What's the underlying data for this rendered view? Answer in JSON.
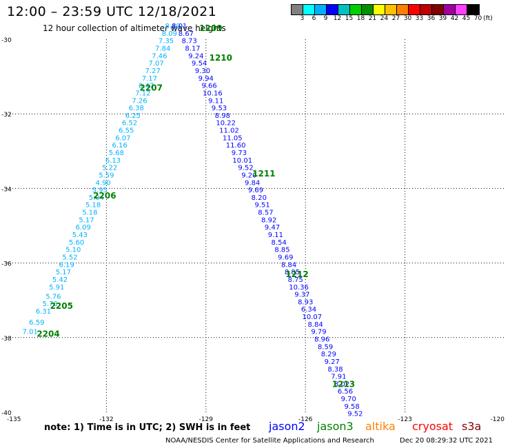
{
  "header": {
    "title": "12:00 – 23:59 UTC 12/18/2021",
    "subtitle": "12 hour collection of altimeter wave heights"
  },
  "colorbar": {
    "unit": "(ft)",
    "labels": [
      "3",
      "6",
      "9",
      "12",
      "15",
      "18",
      "21",
      "24",
      "27",
      "30",
      "33",
      "36",
      "39",
      "42",
      "45",
      "70"
    ],
    "colors": [
      "#808080",
      "#00ffff",
      "#00b0ff",
      "#0000ff",
      "#00c0c0",
      "#00d000",
      "#009000",
      "#ffff00",
      "#ffc000",
      "#ff8000",
      "#ff0000",
      "#c00000",
      "#800000",
      "#a000a0",
      "#ff40ff",
      "#000000"
    ]
  },
  "map": {
    "lon_min": -135,
    "lon_max": -120,
    "lat_min": -40,
    "lat_max": -30,
    "lon_ticks": [
      -135,
      -132,
      -129,
      -126,
      -123,
      -120
    ],
    "lat_ticks": [
      -30,
      -32,
      -34,
      -36,
      -38,
      -40
    ],
    "lon_tick_labels": [
      "-135",
      "-132",
      "-129",
      "-126",
      "-123",
      "-120"
    ],
    "lat_tick_labels": [
      "-30",
      "-32",
      "-34",
      "-36",
      "-38",
      "-40"
    ]
  },
  "tracks": [
    {
      "satellite": "jason3",
      "color": "#00b0ff",
      "points": [
        {
          "lon": -134.3,
          "lat": -37.85,
          "v": "7.01"
        },
        {
          "lon": -134.1,
          "lat": -37.6,
          "v": "6.59"
        },
        {
          "lon": -133.9,
          "lat": -37.3,
          "v": "6.31"
        },
        {
          "lon": -133.7,
          "lat": -37.1,
          "v": "5.76"
        },
        {
          "lon": -133.6,
          "lat": -36.9,
          "v": "5.76"
        },
        {
          "lon": -133.5,
          "lat": -36.65,
          "v": "5.91"
        },
        {
          "lon": -133.4,
          "lat": -36.45,
          "v": "5.42"
        },
        {
          "lon": -133.3,
          "lat": -36.25,
          "v": "5.17"
        },
        {
          "lon": -133.2,
          "lat": -36.05,
          "v": "6.19"
        },
        {
          "lon": -133.1,
          "lat": -35.85,
          "v": "5.52"
        },
        {
          "lon": -133.0,
          "lat": -35.65,
          "v": "5.10"
        },
        {
          "lon": -132.9,
          "lat": -35.45,
          "v": "5.60"
        },
        {
          "lon": -132.8,
          "lat": -35.25,
          "v": "5.43"
        },
        {
          "lon": -132.7,
          "lat": -35.05,
          "v": "6.09"
        },
        {
          "lon": -132.6,
          "lat": -34.85,
          "v": "5.17"
        },
        {
          "lon": -132.5,
          "lat": -34.65,
          "v": "5.18"
        },
        {
          "lon": -132.4,
          "lat": -34.45,
          "v": "5.18"
        },
        {
          "lon": -132.3,
          "lat": -34.25,
          "v": "5.04"
        },
        {
          "lon": -132.2,
          "lat": -34.05,
          "v": "5.95"
        },
        {
          "lon": -132.1,
          "lat": -33.85,
          "v": "4.90"
        },
        {
          "lon": -132.0,
          "lat": -33.65,
          "v": "5.59"
        },
        {
          "lon": -131.9,
          "lat": -33.45,
          "v": "5.22"
        },
        {
          "lon": -131.8,
          "lat": -33.25,
          "v": "6.13"
        },
        {
          "lon": -131.7,
          "lat": -33.05,
          "v": "5.68"
        },
        {
          "lon": -131.6,
          "lat": -32.85,
          "v": "6.16"
        },
        {
          "lon": -131.5,
          "lat": -32.65,
          "v": "6.07"
        },
        {
          "lon": -131.4,
          "lat": -32.45,
          "v": "6.55"
        },
        {
          "lon": -131.3,
          "lat": -32.25,
          "v": "6.52"
        },
        {
          "lon": -131.2,
          "lat": -32.05,
          "v": "6.25"
        },
        {
          "lon": -131.1,
          "lat": -31.85,
          "v": "6.38"
        },
        {
          "lon": -131.0,
          "lat": -31.65,
          "v": "7.26"
        },
        {
          "lon": -130.9,
          "lat": -31.45,
          "v": "7.12"
        },
        {
          "lon": -130.8,
          "lat": -31.25,
          "v": "8.47"
        },
        {
          "lon": -130.7,
          "lat": -31.05,
          "v": "7.17"
        },
        {
          "lon": -130.6,
          "lat": -30.85,
          "v": "7.27"
        },
        {
          "lon": -130.5,
          "lat": -30.65,
          "v": "7.07"
        },
        {
          "lon": -130.4,
          "lat": -30.45,
          "v": "7.46"
        },
        {
          "lon": -130.3,
          "lat": -30.25,
          "v": "7.84"
        },
        {
          "lon": -130.2,
          "lat": -30.05,
          "v": "7.35"
        },
        {
          "lon": -130.1,
          "lat": -29.85,
          "v": "8.09"
        },
        {
          "lon": -130.0,
          "lat": -29.65,
          "v": "8.49"
        }
      ]
    },
    {
      "satellite": "jason2",
      "color": "#0000ff",
      "points": [
        {
          "lon": -129.8,
          "lat": -29.65,
          "v": "8.01"
        },
        {
          "lon": -129.6,
          "lat": -29.85,
          "v": "8.67"
        },
        {
          "lon": -129.5,
          "lat": -30.05,
          "v": "8.73"
        },
        {
          "lon": -129.4,
          "lat": -30.25,
          "v": "8.17"
        },
        {
          "lon": -129.3,
          "lat": -30.45,
          "v": "9.24"
        },
        {
          "lon": -129.2,
          "lat": -30.65,
          "v": "9.54"
        },
        {
          "lon": -129.1,
          "lat": -30.85,
          "v": "9.30"
        },
        {
          "lon": -129.0,
          "lat": -31.05,
          "v": "9.94"
        },
        {
          "lon": -128.9,
          "lat": -31.25,
          "v": "9.66"
        },
        {
          "lon": -128.8,
          "lat": -31.45,
          "v": "10.16"
        },
        {
          "lon": -128.7,
          "lat": -31.65,
          "v": "9.11"
        },
        {
          "lon": -128.6,
          "lat": -31.85,
          "v": "9.53"
        },
        {
          "lon": -128.5,
          "lat": -32.05,
          "v": "8.98"
        },
        {
          "lon": -128.4,
          "lat": -32.25,
          "v": "10.22"
        },
        {
          "lon": -128.3,
          "lat": -32.45,
          "v": "11.02"
        },
        {
          "lon": -128.2,
          "lat": -32.65,
          "v": "11.05"
        },
        {
          "lon": -128.1,
          "lat": -32.85,
          "v": "11.60"
        },
        {
          "lon": -128.0,
          "lat": -33.05,
          "v": "9.73"
        },
        {
          "lon": -127.9,
          "lat": -33.25,
          "v": "10.01"
        },
        {
          "lon": -127.8,
          "lat": -33.45,
          "v": "9.52"
        },
        {
          "lon": -127.7,
          "lat": -33.65,
          "v": "9.20"
        },
        {
          "lon": -127.6,
          "lat": -33.85,
          "v": "9.84"
        },
        {
          "lon": -127.5,
          "lat": -34.05,
          "v": "9.69"
        },
        {
          "lon": -127.4,
          "lat": -34.25,
          "v": "8.20"
        },
        {
          "lon": -127.3,
          "lat": -34.45,
          "v": "9.51"
        },
        {
          "lon": -127.2,
          "lat": -34.65,
          "v": "8.57"
        },
        {
          "lon": -127.1,
          "lat": -34.85,
          "v": "8.92"
        },
        {
          "lon": -127.0,
          "lat": -35.05,
          "v": "9.47"
        },
        {
          "lon": -126.9,
          "lat": -35.25,
          "v": "9.11"
        },
        {
          "lon": -126.8,
          "lat": -35.45,
          "v": "8.54"
        },
        {
          "lon": -126.7,
          "lat": -35.65,
          "v": "8.85"
        },
        {
          "lon": -126.6,
          "lat": -35.85,
          "v": "9.69"
        },
        {
          "lon": -126.5,
          "lat": -36.05,
          "v": "8.84"
        },
        {
          "lon": -126.4,
          "lat": -36.25,
          "v": "8.85"
        },
        {
          "lon": -126.3,
          "lat": -36.45,
          "v": "8.75"
        },
        {
          "lon": -126.2,
          "lat": -36.65,
          "v": "10.36"
        },
        {
          "lon": -126.1,
          "lat": -36.85,
          "v": "9.37"
        },
        {
          "lon": -126.0,
          "lat": -37.05,
          "v": "8.93"
        },
        {
          "lon": -125.9,
          "lat": -37.25,
          "v": "6.34"
        },
        {
          "lon": -125.8,
          "lat": -37.45,
          "v": "10.07"
        },
        {
          "lon": -125.7,
          "lat": -37.65,
          "v": "8.84"
        },
        {
          "lon": -125.6,
          "lat": -37.85,
          "v": "9.79"
        },
        {
          "lon": -125.5,
          "lat": -38.05,
          "v": "8.96"
        },
        {
          "lon": -125.4,
          "lat": -38.25,
          "v": "8.59"
        },
        {
          "lon": -125.3,
          "lat": -38.45,
          "v": "8.29"
        },
        {
          "lon": -125.2,
          "lat": -38.65,
          "v": "9.27"
        },
        {
          "lon": -125.1,
          "lat": -38.85,
          "v": "8.38"
        },
        {
          "lon": -125.0,
          "lat": -39.05,
          "v": "7.91"
        },
        {
          "lon": -124.9,
          "lat": -39.25,
          "v": "8.02"
        },
        {
          "lon": -124.8,
          "lat": -39.45,
          "v": "6.56"
        },
        {
          "lon": -124.7,
          "lat": -39.65,
          "v": "9.70"
        },
        {
          "lon": -124.6,
          "lat": -39.85,
          "v": "9.58"
        },
        {
          "lon": -124.5,
          "lat": -40.05,
          "v": "9.52"
        }
      ]
    }
  ],
  "time_labels": [
    {
      "text": "2204",
      "lon": -134.1,
      "lat": -37.9
    },
    {
      "text": "2205",
      "lon": -133.7,
      "lat": -37.15
    },
    {
      "text": "2206",
      "lon": -132.4,
      "lat": -34.2
    },
    {
      "text": "2207",
      "lon": -131.0,
      "lat": -31.3
    },
    {
      "text": "1209",
      "lon": -129.2,
      "lat": -29.7
    },
    {
      "text": "1210",
      "lon": -128.9,
      "lat": -30.5
    },
    {
      "text": "1211",
      "lon": -127.6,
      "lat": -33.6
    },
    {
      "text": "1212",
      "lon": -126.6,
      "lat": -36.3
    },
    {
      "text": "1213",
      "lon": -125.2,
      "lat": -39.25
    }
  ],
  "time_label_color": "#008000",
  "note": "note:  1) Time is in UTC;  2) SWH is in feet",
  "legend": [
    {
      "name": "jason2",
      "color": "#0000ff"
    },
    {
      "name": "jason3",
      "color": "#008000"
    },
    {
      "name": "altika",
      "color": "#ff8000"
    },
    {
      "name": "cryosat",
      "color": "#ff0000"
    },
    {
      "name": "s3a",
      "color": "#800000"
    }
  ],
  "footer": {
    "credit": "NOAA/NESDIS Center for Satellite Applications and Research",
    "timestamp": "Dec 20 08:29:32 UTC 2021"
  }
}
